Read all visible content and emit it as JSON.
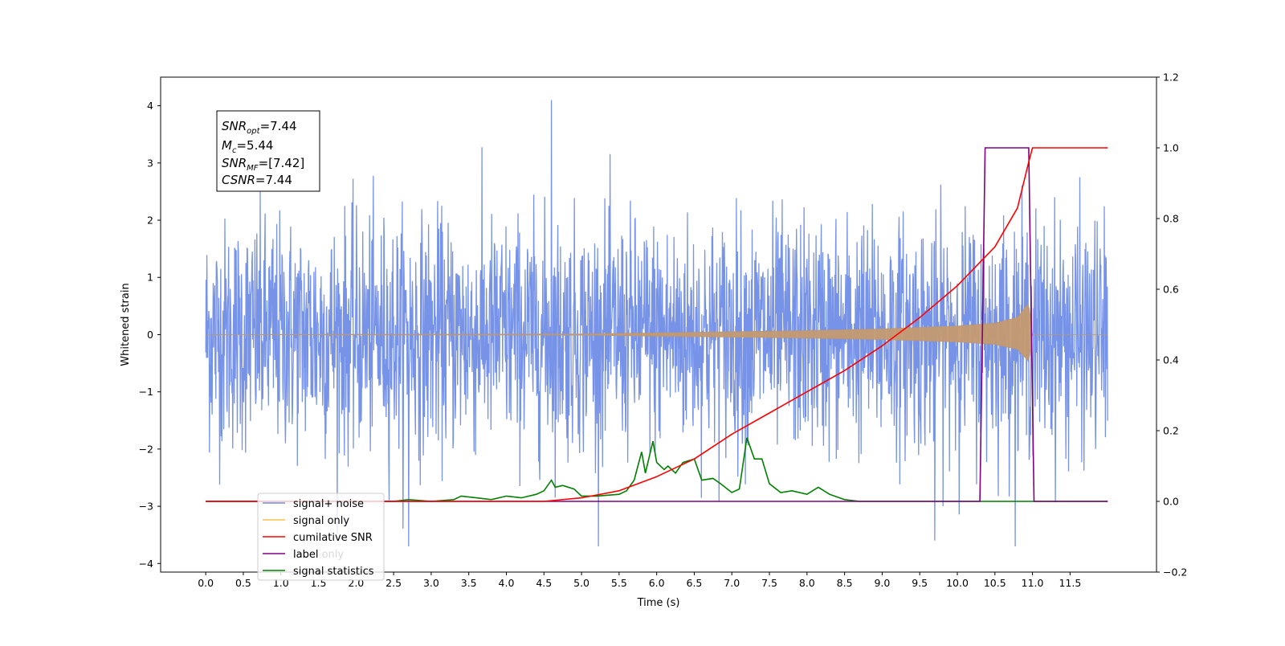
{
  "chart_data": {
    "type": "line",
    "xlabel": "Time (s)",
    "ylabel": "Whitened strain",
    "xlim": [
      -0.6,
      12.65
    ],
    "ylim": [
      -4.15,
      4.5
    ],
    "y2lim": [
      -0.2,
      1.2
    ],
    "x_ticks": [
      "0.0",
      "0.5",
      "1.0",
      "1.5",
      "2.0",
      "2.5",
      "3.0",
      "3.5",
      "4.0",
      "4.5",
      "5.0",
      "5.5",
      "6.0",
      "6.5",
      "7.0",
      "7.5",
      "8.0",
      "8.5",
      "9.0",
      "9.5",
      "10.0",
      "10.5",
      "11.0",
      "11.5"
    ],
    "y_ticks": [
      "4",
      "3",
      "2",
      "1",
      "0",
      "−1",
      "−2",
      "−3",
      "−4"
    ],
    "y2_ticks": [
      "1.2",
      "1.0",
      "0.8",
      "0.6",
      "0.4",
      "0.2",
      "0.0",
      "−0.2"
    ],
    "grid": false,
    "legend_position": "lower-left",
    "annotation": {
      "snr_opt": {
        "main": "SNR",
        "sub": "opt",
        "value": "=7.44"
      },
      "mc": {
        "main": "M",
        "sub": "c",
        "value": "=5.44"
      },
      "snr_mf": {
        "main": "SNR",
        "sub": "MF",
        "value": "=[7.42]"
      },
      "csnr": {
        "main": "CSNR",
        "value": "=7.44"
      }
    },
    "series": [
      {
        "name": "signal+ noise",
        "color": "#6b8ae6",
        "axis": "left",
        "description_level": "gaussian noise, std approx 1.0, peak approx 4.1 at t=4.6"
      },
      {
        "name": "signal only",
        "color": "#ffc04d",
        "axis": "left",
        "envelope_x": [
          0.0,
          5.0,
          6.0,
          7.0,
          8.0,
          9.0,
          10.0,
          10.5,
          10.8,
          10.95,
          11.0
        ],
        "envelope_y": [
          0.0,
          0.01,
          0.03,
          0.05,
          0.07,
          0.1,
          0.15,
          0.2,
          0.3,
          0.55,
          0.0
        ]
      },
      {
        "name": "cumilative SNR",
        "color": "#ff0000",
        "axis": "right",
        "x": [
          0.0,
          4.5,
          5.0,
          5.5,
          6.0,
          6.5,
          7.0,
          7.5,
          8.0,
          8.5,
          9.0,
          9.5,
          10.0,
          10.5,
          10.8,
          10.95,
          11.0,
          12.0
        ],
        "y": [
          0.0,
          0.0,
          0.01,
          0.03,
          0.07,
          0.12,
          0.19,
          0.25,
          0.31,
          0.37,
          0.44,
          0.52,
          0.61,
          0.72,
          0.83,
          0.96,
          1.0,
          1.0
        ]
      },
      {
        "name": "label",
        "color": "#800080",
        "axis": "right",
        "x": [
          0.0,
          10.3,
          10.37,
          10.95,
          11.02,
          12.0
        ],
        "y": [
          0.0,
          0.0,
          1.0,
          1.0,
          0.0,
          0.0
        ]
      },
      {
        "name": "label only",
        "color": "#d8d8d8",
        "axis": "right"
      },
      {
        "name": "signal statistics",
        "color": "#008000",
        "axis": "right",
        "x": [
          0.0,
          2.5,
          2.7,
          3.0,
          3.3,
          3.4,
          3.6,
          3.8,
          4.0,
          4.2,
          4.4,
          4.5,
          4.6,
          4.65,
          4.75,
          4.9,
          5.0,
          5.2,
          5.5,
          5.6,
          5.7,
          5.8,
          5.85,
          5.95,
          6.0,
          6.1,
          6.15,
          6.25,
          6.35,
          6.5,
          6.6,
          6.75,
          6.85,
          7.0,
          7.1,
          7.2,
          7.3,
          7.4,
          7.5,
          7.65,
          7.8,
          8.0,
          8.15,
          8.3,
          8.5,
          8.7,
          9.0,
          10.0,
          12.0
        ],
        "y": [
          0.0,
          0.0,
          0.005,
          0.0,
          0.005,
          0.015,
          0.01,
          0.005,
          0.015,
          0.01,
          0.02,
          0.03,
          0.06,
          0.04,
          0.045,
          0.035,
          0.015,
          0.015,
          0.02,
          0.03,
          0.06,
          0.14,
          0.08,
          0.17,
          0.11,
          0.09,
          0.1,
          0.08,
          0.11,
          0.12,
          0.06,
          0.065,
          0.05,
          0.025,
          0.035,
          0.18,
          0.12,
          0.12,
          0.05,
          0.025,
          0.03,
          0.02,
          0.04,
          0.02,
          0.005,
          0.0,
          0.0,
          0.0,
          0.0
        ]
      }
    ]
  }
}
